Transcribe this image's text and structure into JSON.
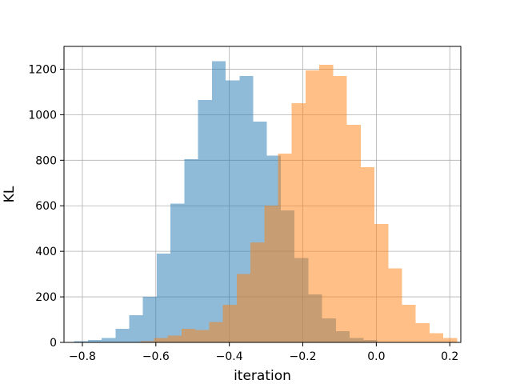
{
  "chart_data": {
    "type": "histogram",
    "xlabel": "iteration",
    "ylabel": "KL",
    "xlim": [
      -0.85,
      0.23
    ],
    "ylim": [
      0,
      1300
    ],
    "grid": true,
    "xticks": [
      -0.8,
      -0.6,
      -0.4,
      -0.2,
      0.0,
      0.2
    ],
    "yticks": [
      0,
      200,
      400,
      600,
      800,
      1000,
      1200
    ],
    "series": [
      {
        "color": "#1f77b4",
        "alpha": 0.5,
        "bin_width": 0.0375,
        "bins": [
          {
            "x0": -0.8225,
            "value": 5
          },
          {
            "x0": -0.785,
            "value": 10
          },
          {
            "x0": -0.7475,
            "value": 20
          },
          {
            "x0": -0.71,
            "value": 60
          },
          {
            "x0": -0.6725,
            "value": 120
          },
          {
            "x0": -0.635,
            "value": 200
          },
          {
            "x0": -0.5975,
            "value": 390
          },
          {
            "x0": -0.56,
            "value": 610
          },
          {
            "x0": -0.5225,
            "value": 805
          },
          {
            "x0": -0.485,
            "value": 1065
          },
          {
            "x0": -0.4475,
            "value": 1235
          },
          {
            "x0": -0.41,
            "value": 1150
          },
          {
            "x0": -0.3725,
            "value": 1170
          },
          {
            "x0": -0.335,
            "value": 970
          },
          {
            "x0": -0.2975,
            "value": 820
          },
          {
            "x0": -0.26,
            "value": 580
          },
          {
            "x0": -0.2225,
            "value": 370
          },
          {
            "x0": -0.185,
            "value": 210
          },
          {
            "x0": -0.1475,
            "value": 105
          },
          {
            "x0": -0.11,
            "value": 50
          },
          {
            "x0": -0.0725,
            "value": 20
          },
          {
            "x0": -0.035,
            "value": 10
          }
        ]
      },
      {
        "color": "#ff7f0e",
        "alpha": 0.5,
        "bin_width": 0.0375,
        "bins": [
          {
            "x0": -0.6425,
            "value": 5
          },
          {
            "x0": -0.605,
            "value": 20
          },
          {
            "x0": -0.5675,
            "value": 30
          },
          {
            "x0": -0.53,
            "value": 60
          },
          {
            "x0": -0.4925,
            "value": 55
          },
          {
            "x0": -0.455,
            "value": 90
          },
          {
            "x0": -0.4175,
            "value": 165
          },
          {
            "x0": -0.38,
            "value": 300
          },
          {
            "x0": -0.3425,
            "value": 440
          },
          {
            "x0": -0.305,
            "value": 600
          },
          {
            "x0": -0.2675,
            "value": 830
          },
          {
            "x0": -0.23,
            "value": 1050
          },
          {
            "x0": -0.1925,
            "value": 1195
          },
          {
            "x0": -0.155,
            "value": 1220
          },
          {
            "x0": -0.1175,
            "value": 1170
          },
          {
            "x0": -0.08,
            "value": 955
          },
          {
            "x0": -0.0425,
            "value": 770
          },
          {
            "x0": -0.005,
            "value": 520
          },
          {
            "x0": 0.0325,
            "value": 325
          },
          {
            "x0": 0.07,
            "value": 165
          },
          {
            "x0": 0.1075,
            "value": 85
          },
          {
            "x0": 0.145,
            "value": 40
          },
          {
            "x0": 0.1825,
            "value": 20
          }
        ]
      }
    ]
  }
}
